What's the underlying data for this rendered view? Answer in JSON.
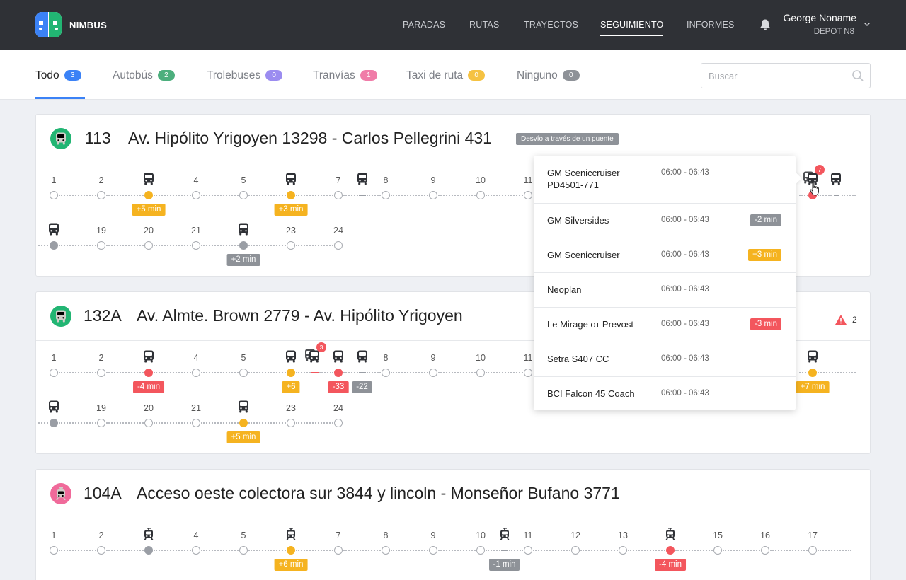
{
  "header": {
    "brand": "NIMBUS",
    "nav": [
      {
        "label": "PARADAS",
        "active": false
      },
      {
        "label": "RUTAS",
        "active": false
      },
      {
        "label": "TRAYECTOS",
        "active": false
      },
      {
        "label": "SEGUIMIENTO",
        "active": true
      },
      {
        "label": "INFORMES",
        "active": false
      }
    ],
    "user_name": "George Noname",
    "depot": "DEPOT N8"
  },
  "tabs": [
    {
      "label": "Todo",
      "count": "3",
      "color": "#3b82f6",
      "active": true
    },
    {
      "label": "Autobús",
      "count": "2",
      "color": "#4caf7d",
      "active": false
    },
    {
      "label": "Trolebuses",
      "count": "0",
      "color": "#9b8cf0",
      "active": false
    },
    {
      "label": "Tranvías",
      "count": "1",
      "color": "#f07ca8",
      "active": false
    },
    {
      "label": "Taxi de ruta",
      "count": "0",
      "color": "#f5c242",
      "active": false
    },
    {
      "label": "Ninguno",
      "count": "0",
      "color": "#8e9298",
      "active": false
    }
  ],
  "search": {
    "placeholder": "Buscar"
  },
  "colors": {
    "yellow": "#f5b320",
    "red": "#f3565d",
    "gray": "#8e9298",
    "bus_green": "#22b573",
    "tram_pink": "#f06a9a"
  },
  "routes": [
    {
      "number": "113",
      "name": "Av. Hipólito Yrigoyen 13298 - Carlos Pellegrini 431",
      "type": "bus",
      "detour": "Desvío a través de un puente",
      "warning_count": "",
      "stops_row1": [
        "1",
        "2",
        "",
        "4",
        "5",
        "",
        "7",
        "8",
        "9",
        "10",
        "11"
      ],
      "stops_row2": [
        "",
        "19",
        "20",
        "21",
        "",
        "23",
        "24"
      ]
    },
    {
      "number": "132A",
      "name": "Av. Almte. Brown 2779 - Av. Hipólito Yrigoyen",
      "type": "bus",
      "detour": "",
      "warning_count": "2",
      "stops_row1": [
        "1",
        "2",
        "",
        "4",
        "5",
        "",
        "",
        "8",
        "9",
        "10",
        "11"
      ],
      "stops_row2": [
        "",
        "19",
        "20",
        "21",
        "",
        "23",
        "24"
      ]
    },
    {
      "number": "104A",
      "name": "Acceso oeste colectora sur 3844 y lincoln - Monseñor Bufano 3771",
      "type": "tram",
      "detour": "",
      "warning_count": "",
      "stops_row1": [
        "1",
        "2",
        "",
        "4",
        "5",
        "",
        "7",
        "8",
        "9",
        "10",
        "11",
        "12",
        "13",
        "",
        "15",
        "16",
        "17"
      ]
    }
  ],
  "delays": {
    "r113_a": "+5 min",
    "r113_b": "+3 min",
    "r113_c": "+2 min",
    "r132_a": "-4 min",
    "r132_b": "+6",
    "r132_c": "-33",
    "r132_d": "-22",
    "r132_e": "+7 min",
    "r132_f": "+5 min",
    "r104_a": "+6 min",
    "r104_b": "-1 min",
    "r104_c": "-4 min"
  },
  "vehicle_groups": {
    "r113_count": "7",
    "r132_count": "3"
  },
  "popover": {
    "items": [
      {
        "name": "GM Sceniccruiser PD4501-771",
        "time": "06:00 - 06:43",
        "delay": "",
        "color": ""
      },
      {
        "name": "GM Silversides",
        "time": "06:00 - 06:43",
        "delay": "-2 min",
        "color": "#8e9298"
      },
      {
        "name": "GM Sceniccruiser",
        "time": "06:00 - 06:43",
        "delay": "+3 min",
        "color": "#f5b320"
      },
      {
        "name": "Neoplan",
        "time": "06:00 - 06:43",
        "delay": "",
        "color": ""
      },
      {
        "name": "Le Mirage от Prevost",
        "time": "06:00 - 06:43",
        "delay": "-3 min",
        "color": "#f3565d"
      },
      {
        "name": "Setra S407 CC",
        "time": "06:00 - 06:43",
        "delay": "",
        "color": ""
      },
      {
        "name": "BCI Falcon 45 Coach",
        "time": "06:00 - 06:43",
        "delay": "",
        "color": ""
      }
    ]
  }
}
